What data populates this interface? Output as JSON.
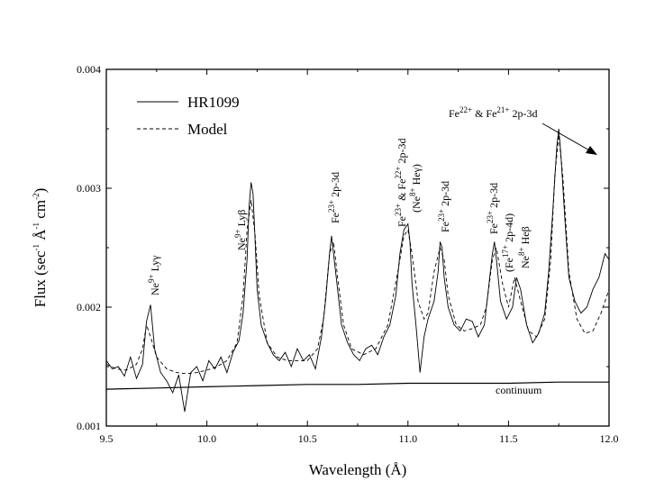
{
  "chart_data": {
    "type": "line",
    "title": "",
    "xlabel": "Wavelength (Å)",
    "ylabel": {
      "base": "Flux (sec",
      "sup1": "-1",
      "mid": " Å",
      "sup2": "-1",
      "mid2": " cm",
      "sup3": "-2",
      "end": ")"
    },
    "xlim": [
      9.5,
      12.0
    ],
    "ylim": [
      0.001,
      0.004
    ],
    "x_ticks": [
      "9.5",
      "10.0",
      "10.5",
      "11.0",
      "11.5",
      "12.0"
    ],
    "y_ticks": [
      "0.001",
      "0.002",
      "0.003",
      "0.004"
    ],
    "legend_position": "top-left",
    "series": [
      {
        "name": "HR1099",
        "style": "solid",
        "color": "#000000",
        "x": [
          9.5,
          9.53,
          9.56,
          9.59,
          9.62,
          9.65,
          9.68,
          9.7,
          9.72,
          9.74,
          9.77,
          9.8,
          9.83,
          9.86,
          9.89,
          9.92,
          9.95,
          9.98,
          10.01,
          10.04,
          10.07,
          10.1,
          10.13,
          10.16,
          10.18,
          10.2,
          10.21,
          10.22,
          10.23,
          10.24,
          10.25,
          10.27,
          10.3,
          10.33,
          10.36,
          10.39,
          10.42,
          10.45,
          10.48,
          10.51,
          10.54,
          10.57,
          10.59,
          10.61,
          10.62,
          10.63,
          10.65,
          10.67,
          10.7,
          10.73,
          10.76,
          10.79,
          10.82,
          10.85,
          10.88,
          10.91,
          10.94,
          10.96,
          10.98,
          11.0,
          11.01,
          11.02,
          11.04,
          11.06,
          11.08,
          11.1,
          11.13,
          11.15,
          11.16,
          11.17,
          11.18,
          11.2,
          11.23,
          11.26,
          11.29,
          11.32,
          11.35,
          11.38,
          11.4,
          11.42,
          11.43,
          11.44,
          11.46,
          11.49,
          11.52,
          11.54,
          11.56,
          11.59,
          11.62,
          11.65,
          11.68,
          11.7,
          11.72,
          11.74,
          11.75,
          11.76,
          11.78,
          11.8,
          11.83,
          11.86,
          11.89,
          11.92,
          11.95,
          11.98,
          12.0
        ],
        "y": [
          0.00155,
          0.00148,
          0.0015,
          0.00142,
          0.00158,
          0.0014,
          0.00152,
          0.00188,
          0.00202,
          0.00165,
          0.00145,
          0.00138,
          0.00128,
          0.00143,
          0.00112,
          0.00145,
          0.0015,
          0.00138,
          0.00155,
          0.00148,
          0.00158,
          0.00145,
          0.00162,
          0.00172,
          0.00195,
          0.0024,
          0.00285,
          0.00305,
          0.00295,
          0.00255,
          0.00215,
          0.00185,
          0.0017,
          0.0016,
          0.00155,
          0.00162,
          0.0015,
          0.00165,
          0.00155,
          0.0016,
          0.00148,
          0.00175,
          0.00205,
          0.00245,
          0.0026,
          0.00245,
          0.00215,
          0.00185,
          0.0017,
          0.0016,
          0.00155,
          0.00165,
          0.00168,
          0.0016,
          0.00175,
          0.00185,
          0.0021,
          0.00245,
          0.00265,
          0.0027,
          0.00255,
          0.0022,
          0.00185,
          0.00145,
          0.00175,
          0.0019,
          0.00205,
          0.0023,
          0.00255,
          0.0025,
          0.00225,
          0.002,
          0.00185,
          0.0018,
          0.0019,
          0.00188,
          0.00175,
          0.00185,
          0.00215,
          0.00245,
          0.00255,
          0.0024,
          0.00205,
          0.0019,
          0.002,
          0.00225,
          0.00215,
          0.00185,
          0.0017,
          0.00178,
          0.00195,
          0.0023,
          0.0028,
          0.00335,
          0.0035,
          0.0033,
          0.00275,
          0.00225,
          0.00205,
          0.00195,
          0.002,
          0.00215,
          0.00225,
          0.00245,
          0.0024
        ]
      },
      {
        "name": "Model",
        "style": "dashed",
        "color": "#000000",
        "x": [
          9.5,
          9.55,
          9.6,
          9.65,
          9.68,
          9.7,
          9.72,
          9.75,
          9.8,
          9.85,
          9.9,
          9.95,
          10.0,
          10.05,
          10.1,
          10.15,
          10.18,
          10.2,
          10.22,
          10.24,
          10.26,
          10.3,
          10.35,
          10.4,
          10.45,
          10.5,
          10.55,
          10.58,
          10.61,
          10.63,
          10.65,
          10.68,
          10.72,
          10.78,
          10.84,
          10.9,
          10.95,
          10.98,
          11.0,
          11.02,
          11.05,
          11.08,
          11.1,
          11.13,
          11.16,
          11.18,
          11.2,
          11.24,
          11.28,
          11.32,
          11.36,
          11.39,
          11.42,
          11.44,
          11.47,
          11.5,
          11.53,
          11.56,
          11.6,
          11.64,
          11.68,
          11.71,
          11.73,
          11.75,
          11.77,
          11.8,
          11.84,
          11.88,
          11.92,
          11.96,
          12.0
        ],
        "y": [
          0.00152,
          0.00148,
          0.00147,
          0.00152,
          0.00165,
          0.00185,
          0.00175,
          0.00158,
          0.00148,
          0.00145,
          0.00144,
          0.00145,
          0.00147,
          0.0015,
          0.00155,
          0.0017,
          0.0021,
          0.00265,
          0.0029,
          0.0026,
          0.0021,
          0.0017,
          0.00158,
          0.00155,
          0.00155,
          0.00155,
          0.00165,
          0.0019,
          0.00245,
          0.00255,
          0.00225,
          0.00185,
          0.00165,
          0.0016,
          0.00165,
          0.00185,
          0.0023,
          0.0026,
          0.00265,
          0.00245,
          0.00205,
          0.0019,
          0.00195,
          0.0023,
          0.0025,
          0.0024,
          0.0021,
          0.00185,
          0.0018,
          0.00182,
          0.00185,
          0.002,
          0.0024,
          0.0025,
          0.0022,
          0.002,
          0.00225,
          0.00205,
          0.0018,
          0.00175,
          0.0019,
          0.0024,
          0.0031,
          0.00345,
          0.0031,
          0.0023,
          0.0019,
          0.00178,
          0.0018,
          0.00195,
          0.00215
        ]
      },
      {
        "name": "continuum",
        "style": "solid",
        "color": "#000000",
        "x": [
          9.5,
          9.75,
          10.0,
          10.25,
          10.5,
          10.75,
          11.0,
          11.25,
          11.5,
          11.75,
          12.0
        ],
        "y": [
          0.00131,
          0.00132,
          0.00133,
          0.00134,
          0.00135,
          0.00135,
          0.00136,
          0.00136,
          0.00136,
          0.00137,
          0.00137
        ]
      }
    ],
    "annotations": [
      {
        "id": "ne9-lyg",
        "parts": [
          [
            "Ne",
            "9+",
            " Ly",
            "γ",
            ""
          ]
        ]
      },
      {
        "id": "ne9-lyb",
        "parts": [
          [
            "Ne",
            "9+",
            " Ly",
            "β",
            ""
          ]
        ]
      },
      {
        "id": "fe23-a",
        "parts": [
          [
            "Fe",
            "23+",
            " 2p-3d"
          ]
        ]
      },
      {
        "id": "fe23-fe22",
        "lines": [
          "Fe",
          "23+",
          " & Fe",
          "22+",
          " 2p-3d"
        ],
        "line2": [
          "(Ne",
          "8+",
          " Heγ)"
        ]
      },
      {
        "id": "fe23-b",
        "parts": [
          [
            "Fe",
            "23+",
            " 2p-3d"
          ]
        ]
      },
      {
        "id": "fe23-c",
        "lines": [
          "Fe",
          "23+",
          " 2p-3d"
        ],
        "line2": [
          "(Fe",
          "17+",
          " 2p-4d)"
        ],
        "line3": [
          "Ne",
          "8+",
          " Heβ"
        ]
      },
      {
        "id": "fe22-fe21",
        "lines": [
          "Fe",
          "22+",
          " & Fe",
          "21+",
          " 2p-3d"
        ]
      },
      {
        "id": "continuum-label",
        "text": "continuum"
      }
    ],
    "annotation_text": {
      "ne9_lyg": "Ne9+ Lyγ",
      "ne9_lyb": "Ne9+ Lyβ",
      "fe23_a": "Fe23+ 2p-3d",
      "fe23_fe22": "Fe23+ & Fe22+ 2p-3d",
      "ne8_heg": "(Ne8+ Heγ)",
      "fe23_b": "Fe23+ 2p-3d",
      "fe23_c": "Fe23+ 2p-3d",
      "fe17": "(Fe17+ 2p-4d)",
      "ne8_heb": "Ne8+ Heβ",
      "fe22_fe21": "Fe22+ & Fe21+ 2p-3d",
      "continuum": "continuum"
    }
  }
}
